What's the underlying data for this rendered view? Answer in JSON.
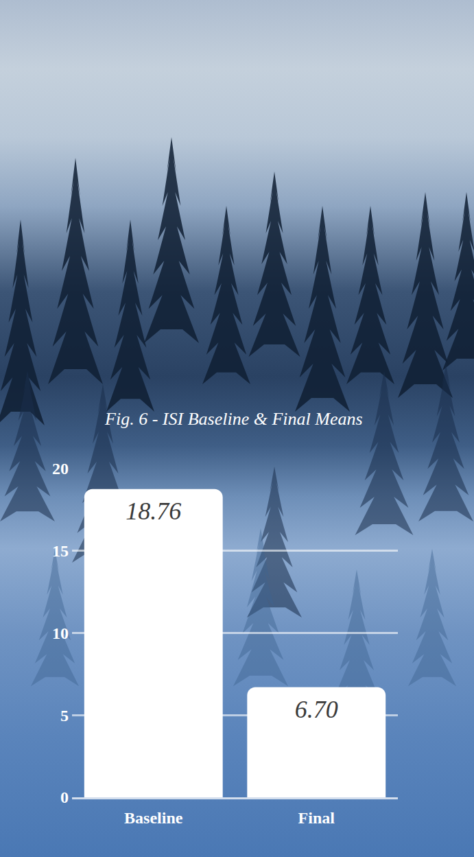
{
  "chart_data": {
    "type": "bar",
    "title": "Fig. 6 - ISI Baseline & Final Means",
    "categories": [
      "Baseline",
      "Final"
    ],
    "values": [
      18.76,
      6.7
    ],
    "value_labels": [
      "18.76",
      "6.70"
    ],
    "color": "#ffffff",
    "ylim": [
      0,
      20
    ],
    "yticks": [
      0,
      5,
      10,
      15,
      20
    ],
    "grid": true,
    "data_labels": true
  }
}
